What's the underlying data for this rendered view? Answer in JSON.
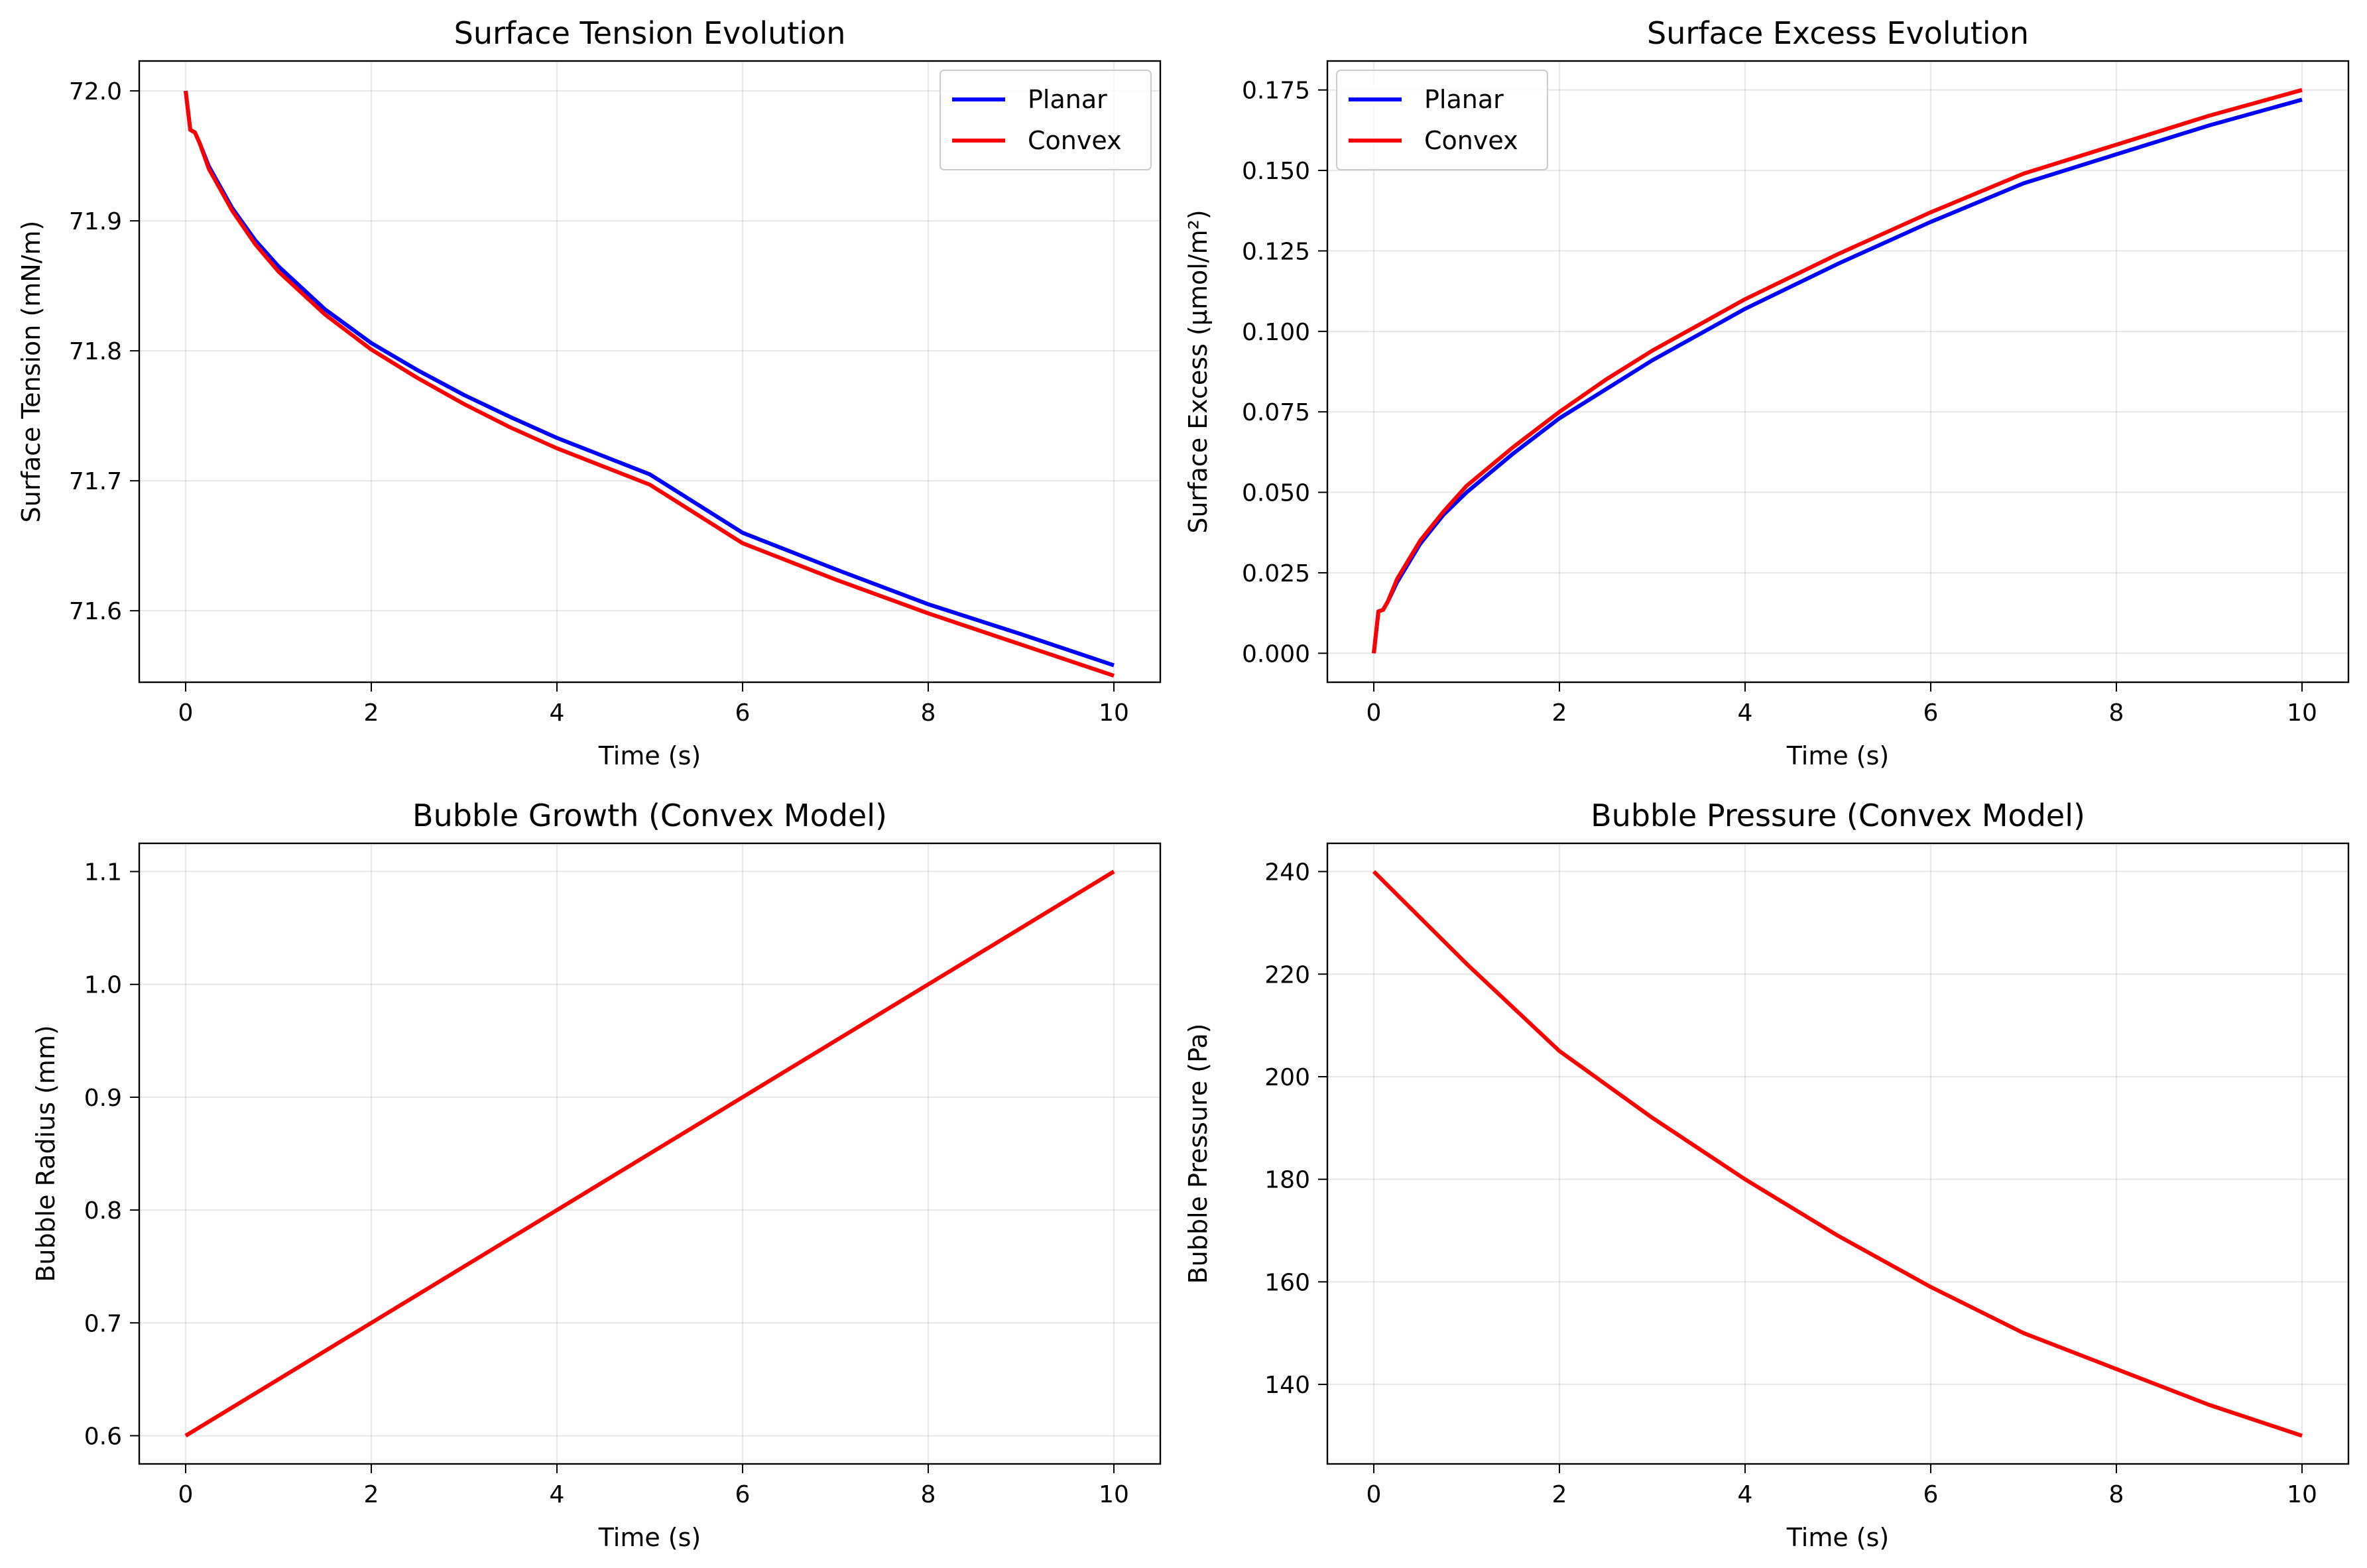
{
  "chart_data": [
    {
      "type": "line",
      "title": "Surface Tension Evolution",
      "xlabel": "Time (s)",
      "ylabel": "Surface Tension (mN/m)",
      "xlim": [
        -0.5,
        10.5
      ],
      "ylim": [
        71.545,
        72.023
      ],
      "xticks": [
        0,
        2,
        4,
        6,
        8,
        10
      ],
      "yticks": [
        71.6,
        71.7,
        71.8,
        71.9,
        72.0
      ],
      "ytick_labels": [
        "71.6",
        "71.7",
        "71.8",
        "71.9",
        "72.0"
      ],
      "grid": true,
      "legend": "upper right",
      "series": [
        {
          "name": "Planar",
          "color": "#0000ff",
          "points": [
            [
              0,
              72.0
            ],
            [
              0.05,
              71.97
            ],
            [
              0.1,
              71.968
            ],
            [
              0.15,
              71.96
            ],
            [
              0.25,
              71.942
            ],
            [
              0.5,
              71.91
            ],
            [
              0.75,
              71.885
            ],
            [
              1,
              71.865
            ],
            [
              1.5,
              71.832
            ],
            [
              2,
              71.806
            ],
            [
              2.5,
              71.785
            ],
            [
              3,
              71.766
            ],
            [
              3.5,
              71.749
            ],
            [
              4,
              71.733
            ],
            [
              5,
              71.705
            ],
            [
              6,
              71.66
            ],
            [
              7,
              71.632
            ],
            [
              8,
              71.605
            ],
            [
              9,
              71.582
            ],
            [
              10,
              71.558
            ]
          ]
        },
        {
          "name": "Convex",
          "color": "#ff0000",
          "points": [
            [
              0,
              72.0
            ],
            [
              0.05,
              71.97
            ],
            [
              0.1,
              71.968
            ],
            [
              0.15,
              71.96
            ],
            [
              0.25,
              71.94
            ],
            [
              0.5,
              71.908
            ],
            [
              0.75,
              71.882
            ],
            [
              1,
              71.861
            ],
            [
              1.5,
              71.828
            ],
            [
              2,
              71.801
            ],
            [
              2.5,
              71.779
            ],
            [
              3,
              71.759
            ],
            [
              3.5,
              71.741
            ],
            [
              4,
              71.725
            ],
            [
              5,
              71.697
            ],
            [
              6,
              71.652
            ],
            [
              7,
              71.624
            ],
            [
              8,
              71.598
            ],
            [
              9,
              71.574
            ],
            [
              10,
              71.55
            ]
          ]
        }
      ]
    },
    {
      "type": "line",
      "title": "Surface Excess Evolution",
      "xlabel": "Time (s)",
      "ylabel": "Surface Excess (μmol/m²)",
      "xlim": [
        -0.5,
        10.5
      ],
      "ylim": [
        -0.009,
        0.184
      ],
      "xticks": [
        0,
        2,
        4,
        6,
        8,
        10
      ],
      "yticks": [
        0.0,
        0.025,
        0.05,
        0.075,
        0.1,
        0.125,
        0.15,
        0.175
      ],
      "ytick_labels": [
        "0.000",
        "0.025",
        "0.050",
        "0.075",
        "0.100",
        "0.125",
        "0.150",
        "0.175"
      ],
      "grid": true,
      "legend": "upper left",
      "series": [
        {
          "name": "Planar",
          "color": "#0000ff",
          "points": [
            [
              0,
              0.0
            ],
            [
              0.05,
              0.013
            ],
            [
              0.1,
              0.0135
            ],
            [
              0.15,
              0.016
            ],
            [
              0.25,
              0.022
            ],
            [
              0.5,
              0.034
            ],
            [
              0.75,
              0.043
            ],
            [
              1,
              0.05
            ],
            [
              1.5,
              0.062
            ],
            [
              2,
              0.073
            ],
            [
              2.5,
              0.082
            ],
            [
              3,
              0.091
            ],
            [
              3.5,
              0.099
            ],
            [
              4,
              0.107
            ],
            [
              5,
              0.121
            ],
            [
              6,
              0.134
            ],
            [
              7,
              0.146
            ],
            [
              8,
              0.155
            ],
            [
              9,
              0.164
            ],
            [
              10,
              0.172
            ]
          ]
        },
        {
          "name": "Convex",
          "color": "#ff0000",
          "points": [
            [
              0,
              0.0
            ],
            [
              0.05,
              0.013
            ],
            [
              0.1,
              0.0135
            ],
            [
              0.15,
              0.016
            ],
            [
              0.25,
              0.023
            ],
            [
              0.5,
              0.035
            ],
            [
              0.75,
              0.044
            ],
            [
              1,
              0.052
            ],
            [
              1.5,
              0.064
            ],
            [
              2,
              0.075
            ],
            [
              2.5,
              0.085
            ],
            [
              3,
              0.094
            ],
            [
              3.5,
              0.102
            ],
            [
              4,
              0.11
            ],
            [
              5,
              0.124
            ],
            [
              6,
              0.137
            ],
            [
              7,
              0.149
            ],
            [
              8,
              0.158
            ],
            [
              9,
              0.167
            ],
            [
              10,
              0.175
            ]
          ]
        }
      ]
    },
    {
      "type": "line",
      "title": "Bubble Growth (Convex Model)",
      "xlabel": "Time (s)",
      "ylabel": "Bubble Radius (mm)",
      "xlim": [
        -0.5,
        10.5
      ],
      "ylim": [
        0.575,
        1.125
      ],
      "xticks": [
        0,
        2,
        4,
        6,
        8,
        10
      ],
      "yticks": [
        0.6,
        0.7,
        0.8,
        0.9,
        1.0,
        1.1
      ],
      "ytick_labels": [
        "0.6",
        "0.7",
        "0.8",
        "0.9",
        "1.0",
        "1.1"
      ],
      "grid": true,
      "legend": "none",
      "series": [
        {
          "color": "#ff0000",
          "points": [
            [
              0,
              0.6
            ],
            [
              10,
              1.1
            ]
          ]
        }
      ]
    },
    {
      "type": "line",
      "title": "Bubble Pressure (Convex Model)",
      "xlabel": "Time (s)",
      "ylabel": "Bubble Pressure (Pa)",
      "xlim": [
        -0.5,
        10.5
      ],
      "ylim": [
        124.5,
        245.5
      ],
      "xticks": [
        0,
        2,
        4,
        6,
        8,
        10
      ],
      "yticks": [
        140,
        160,
        180,
        200,
        220,
        240
      ],
      "ytick_labels": [
        "140",
        "160",
        "180",
        "200",
        "220",
        "240"
      ],
      "grid": true,
      "legend": "none",
      "series": [
        {
          "color": "#ff0000",
          "points": [
            [
              0,
              240
            ],
            [
              1,
              222
            ],
            [
              2,
              205
            ],
            [
              3,
              192
            ],
            [
              4,
              180
            ],
            [
              5,
              169
            ],
            [
              6,
              159
            ],
            [
              7,
              150
            ],
            [
              8,
              143
            ],
            [
              9,
              136
            ],
            [
              10,
              130
            ]
          ]
        }
      ]
    }
  ]
}
